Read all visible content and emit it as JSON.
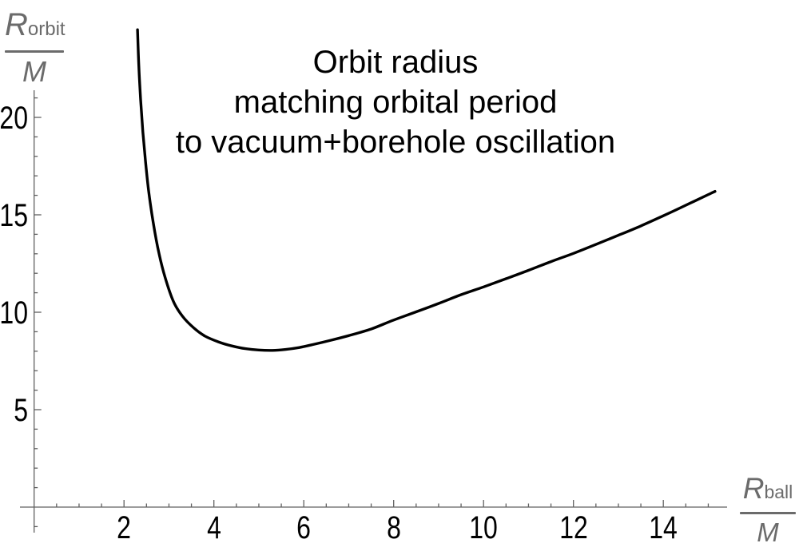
{
  "chart_data": {
    "type": "line",
    "title_lines": [
      "Orbit radius",
      "matching orbital period",
      "to vacuum+borehole oscillation"
    ],
    "y_axis_label": {
      "symbol": "R",
      "subscript": "orbit",
      "denominator": "M"
    },
    "x_axis_label": {
      "symbol": "R",
      "subscript": "ball",
      "denominator": "M"
    },
    "ylabel": "R_orbit / M",
    "xlabel": "R_ball / M",
    "x_range": [
      0,
      15.4
    ],
    "y_range": [
      0,
      21.5
    ],
    "x_ticks_major": [
      2,
      4,
      6,
      8,
      10,
      12,
      14
    ],
    "x_minor_step": 0.5,
    "y_ticks_major": [
      5,
      10,
      15,
      20
    ],
    "y_minor_step": 1,
    "grid": false,
    "legend": false,
    "colors": {
      "curve": "#000000",
      "axis": "#606060",
      "tick_labels": "#000000",
      "axis_labels": "#6b6b6b",
      "background": "#ffffff"
    },
    "series": [
      {
        "name": "orbit-radius-matching-oscillation",
        "points": [
          [
            2.3,
            24.5
          ],
          [
            2.33,
            22.6
          ],
          [
            2.37,
            20.9
          ],
          [
            2.42,
            19.25
          ],
          [
            2.48,
            17.7
          ],
          [
            2.55,
            16.2
          ],
          [
            2.65,
            14.6
          ],
          [
            2.78,
            13.0
          ],
          [
            2.92,
            11.75
          ],
          [
            3.1,
            10.55
          ],
          [
            3.3,
            9.8
          ],
          [
            3.55,
            9.2
          ],
          [
            3.8,
            8.78
          ],
          [
            4.1,
            8.48
          ],
          [
            4.4,
            8.27
          ],
          [
            4.7,
            8.13
          ],
          [
            5.0,
            8.06
          ],
          [
            5.3,
            8.04
          ],
          [
            5.6,
            8.09
          ],
          [
            5.9,
            8.19
          ],
          [
            6.2,
            8.34
          ],
          [
            6.6,
            8.56
          ],
          [
            7.0,
            8.8
          ],
          [
            7.5,
            9.14
          ],
          [
            8.0,
            9.6
          ],
          [
            8.5,
            10.02
          ],
          [
            9.0,
            10.45
          ],
          [
            9.5,
            10.9
          ],
          [
            10.0,
            11.3
          ],
          [
            10.5,
            11.72
          ],
          [
            11.0,
            12.15
          ],
          [
            11.5,
            12.6
          ],
          [
            12.0,
            13.02
          ],
          [
            12.5,
            13.48
          ],
          [
            13.0,
            13.95
          ],
          [
            13.5,
            14.43
          ],
          [
            14.0,
            14.95
          ],
          [
            14.5,
            15.49
          ],
          [
            15.0,
            16.04
          ],
          [
            15.15,
            16.2
          ]
        ]
      }
    ]
  }
}
